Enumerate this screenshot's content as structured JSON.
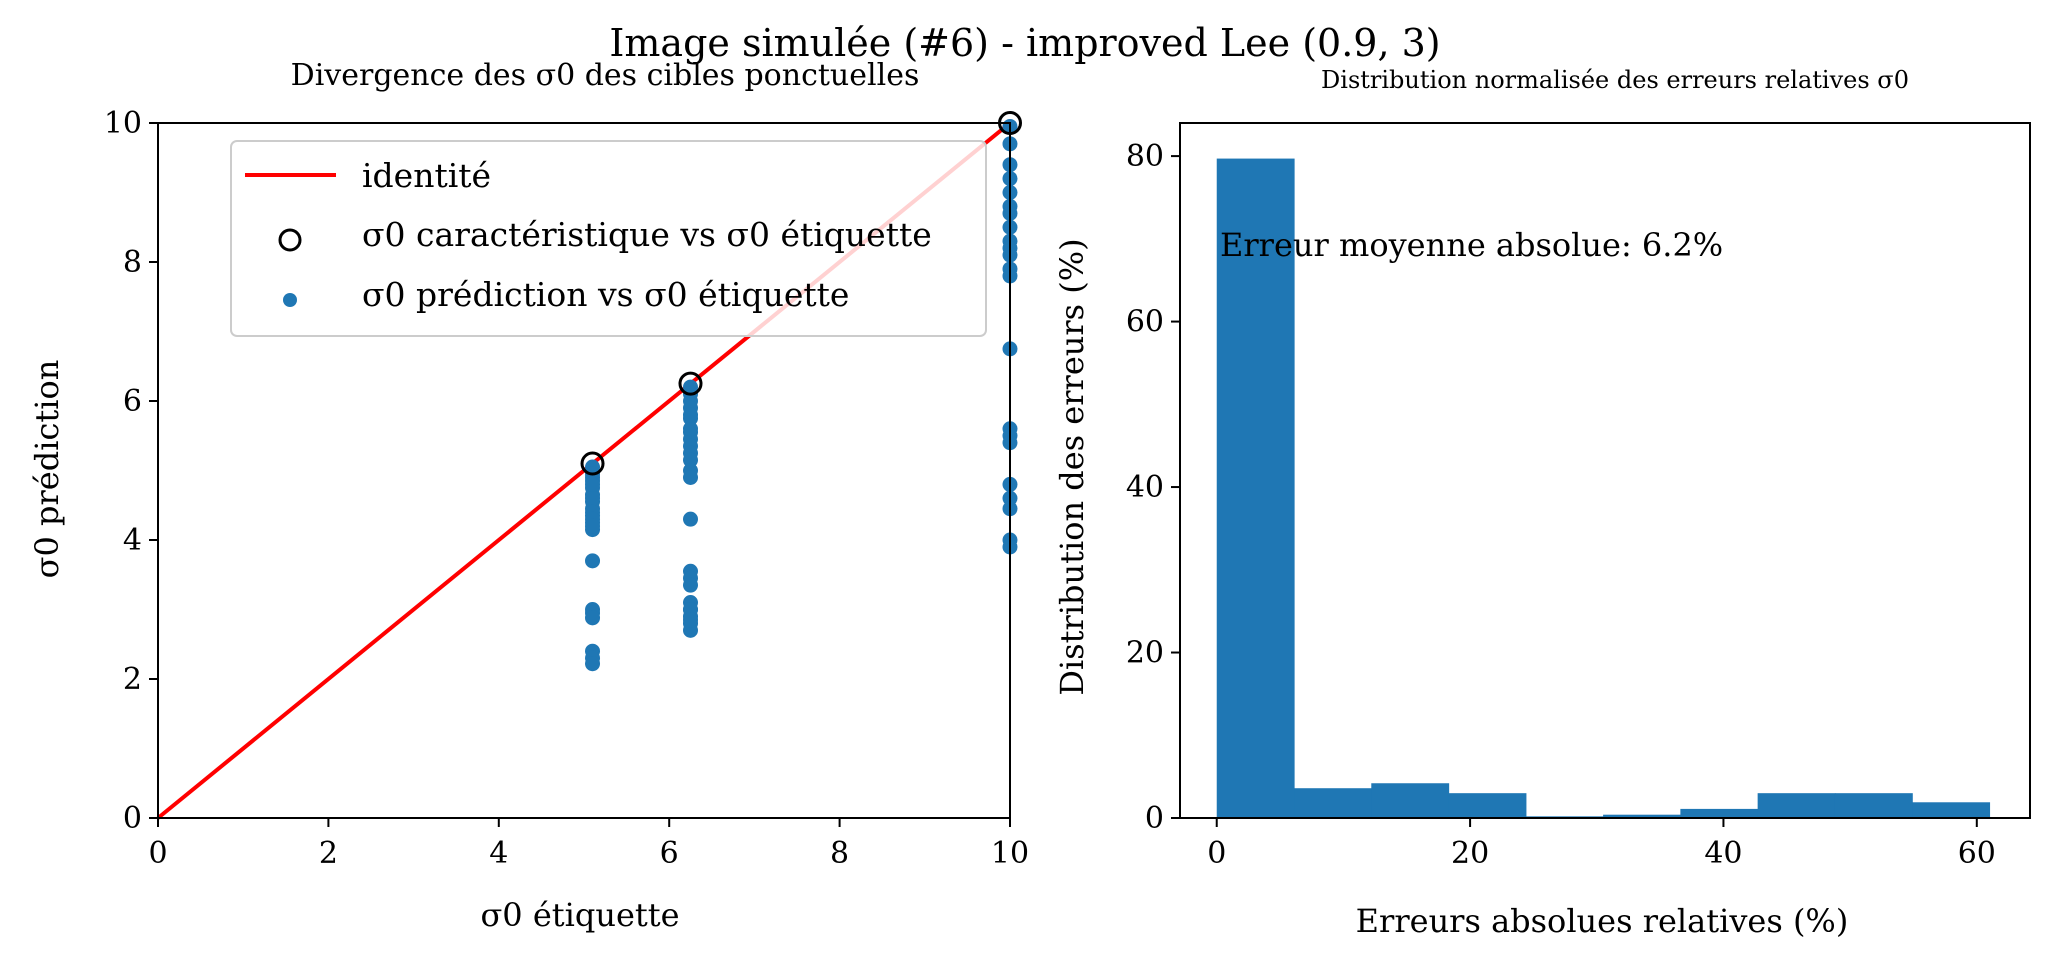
{
  "figure": {
    "suptitle": "Image simulée (#6) - improved Lee (0.9, 3)"
  },
  "chart_data": [
    {
      "type": "scatter",
      "title": "Divergence des σ0 des cibles ponctuelles",
      "xlabel": "σ0 étiquette",
      "ylabel": "σ0 prédiction",
      "xlim": [
        0,
        10
      ],
      "ylim": [
        0,
        10
      ],
      "xticks": [
        "0",
        "2",
        "4",
        "6",
        "8",
        "10"
      ],
      "yticks": [
        "0",
        "2",
        "4",
        "6",
        "8",
        "10"
      ],
      "grid": false,
      "legend_position": "top-left",
      "colors": {
        "identity": "#ff0000",
        "prediction": "#1f77b4",
        "characteristic": "#000000"
      },
      "series": [
        {
          "name": "identité",
          "kind": "line",
          "x": [
            0,
            10
          ],
          "y": [
            0,
            10
          ]
        },
        {
          "name": "σ0 caractéristique vs σ0 étiquette",
          "kind": "open-circle",
          "x": [
            5.1,
            6.25,
            10.0
          ],
          "y": [
            5.1,
            6.25,
            10.0
          ]
        },
        {
          "name": "σ0 prédiction vs σ0 étiquette",
          "kind": "dot",
          "x": [
            5.1,
            5.1,
            5.1,
            5.1,
            5.1,
            5.1,
            5.1,
            5.1,
            5.1,
            5.1,
            5.1,
            5.1,
            5.1,
            5.1,
            5.1,
            5.1,
            5.1,
            5.1,
            5.1,
            5.1,
            5.1,
            5.1,
            5.1,
            6.25,
            6.25,
            6.25,
            6.25,
            6.25,
            6.25,
            6.25,
            6.25,
            6.25,
            6.25,
            6.25,
            6.25,
            6.25,
            6.25,
            6.25,
            6.25,
            6.25,
            6.25,
            6.25,
            6.25,
            6.25,
            6.25,
            6.25,
            6.25,
            6.25,
            10,
            10,
            10,
            10,
            10,
            10,
            10,
            10,
            10,
            10,
            10,
            10,
            10,
            10,
            10,
            10,
            10,
            10,
            10,
            10,
            10,
            10
          ],
          "y": [
            5.05,
            4.95,
            4.85,
            4.75,
            4.65,
            4.55,
            4.45,
            4.35,
            4.25,
            4.15,
            3.7,
            3.0,
            2.95,
            2.88,
            2.4,
            2.3,
            2.22,
            4.9,
            4.6,
            4.4,
            4.3,
            4.2,
            4.8,
            6.2,
            6.1,
            6.0,
            5.9,
            5.75,
            5.55,
            5.45,
            5.35,
            5.25,
            5.15,
            5.0,
            4.3,
            3.55,
            3.45,
            3.35,
            3.1,
            3.0,
            2.9,
            2.8,
            2.7,
            5.6,
            5.8,
            4.9,
            3.0,
            2.85,
            9.95,
            9.7,
            9.4,
            9.2,
            9.0,
            8.8,
            8.7,
            8.5,
            8.3,
            8.2,
            8.1,
            7.9,
            7.8,
            6.75,
            5.6,
            5.5,
            5.4,
            4.8,
            4.6,
            4.45,
            4.0,
            3.9
          ]
        }
      ]
    },
    {
      "type": "bar",
      "title": "Distribution normalisée des erreurs relatives σ0",
      "xlabel": "Erreurs absolues relatives (%)",
      "ylabel": "Distribution des erreurs (%)",
      "xlim": [
        -2.9,
        64.2
      ],
      "ylim": [
        0,
        84
      ],
      "xticks": [
        "0",
        "20",
        "40",
        "60"
      ],
      "yticks": [
        "0",
        "20",
        "40",
        "60",
        "80"
      ],
      "grid": false,
      "annotation": "Erreur moyenne absolue: 6.2%",
      "color": "#1f77b4",
      "bin_edges": [
        0,
        6.1,
        12.2,
        18.3,
        24.4,
        30.5,
        36.6,
        42.7,
        48.8,
        54.9,
        61.0
      ],
      "values": [
        79.7,
        3.6,
        4.2,
        3.0,
        0.2,
        0.4,
        1.1,
        3.0,
        3.0,
        1.9
      ]
    }
  ]
}
